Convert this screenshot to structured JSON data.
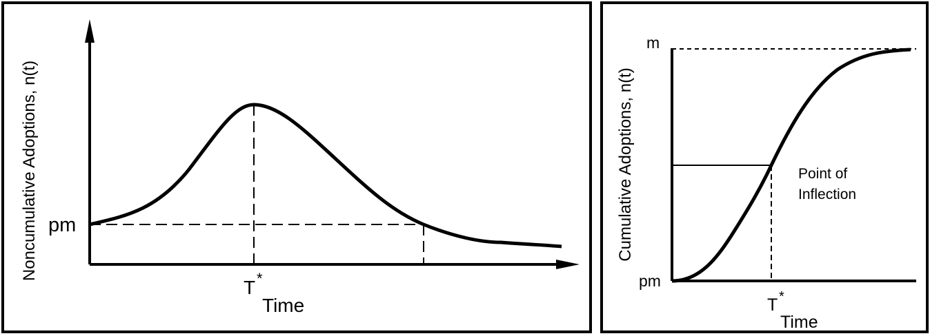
{
  "left_diagram": {
    "y_axis_label": "Noncumulative Adoptions, n(t)",
    "x_axis_label": "Time",
    "peak_marker": "T",
    "peak_marker_superscript": "*",
    "y_intercept_label": "pm"
  },
  "right_diagram": {
    "y_axis_label": "Cumulative Adoptions, n(t)",
    "x_axis_label": "Time",
    "inflection_marker": "T",
    "inflection_marker_superscript": "*",
    "y_max_label": "m",
    "y_min_label": "pm",
    "annotation_line1": "Point of",
    "annotation_line2": "Inflection"
  }
}
